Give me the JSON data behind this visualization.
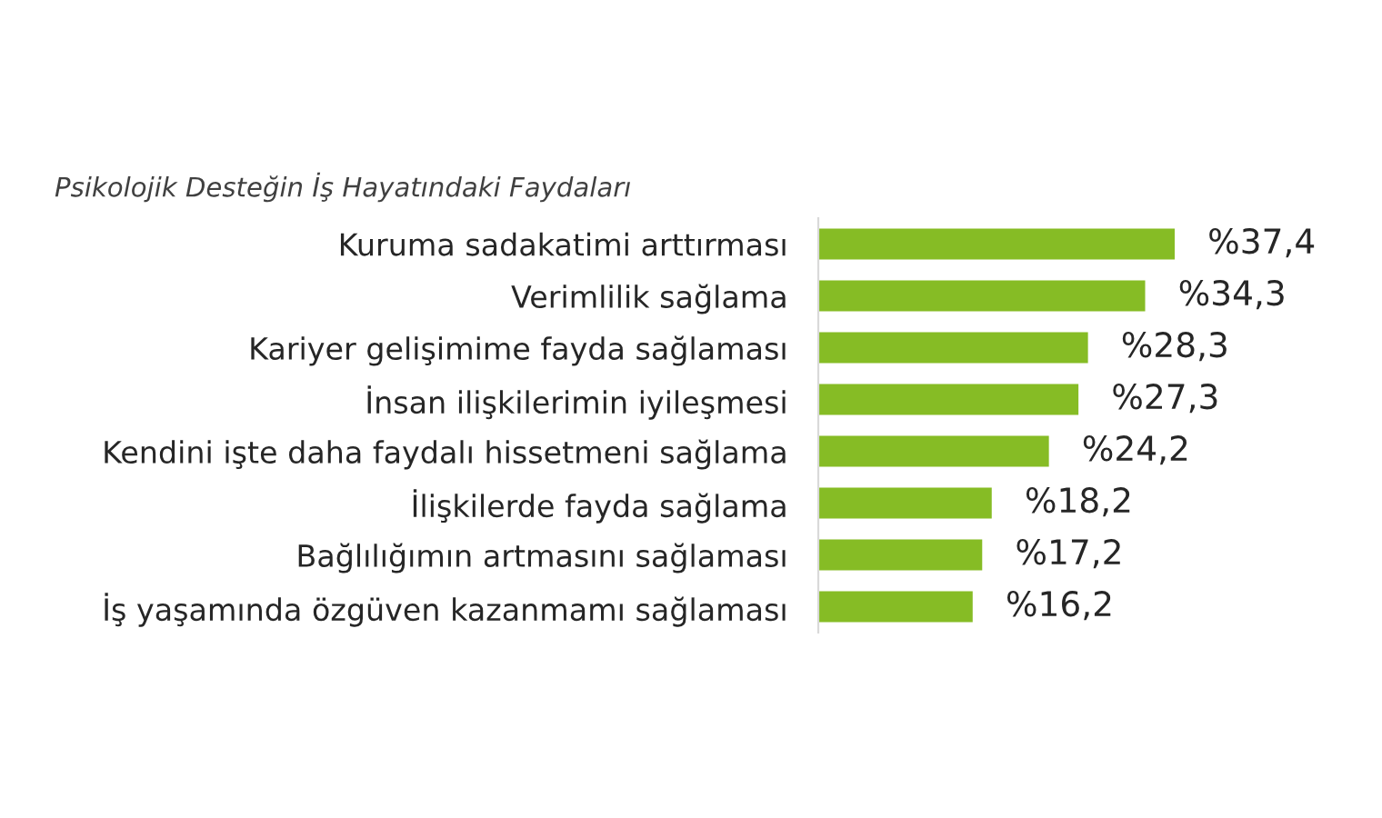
{
  "chart_data": {
    "type": "bar",
    "orientation": "horizontal",
    "title": "Psikolojik Desteğin İş Hayatındaki Faydaları",
    "categories": [
      "Kuruma sadakatimi arttırması",
      "Verimlilik sağlama",
      "Kariyer gelişimime fayda sağlaması",
      "İnsan ilişkilerimin iyileşmesi",
      "Kendini işte daha faydalı hissetmeni sağlama",
      "İlişkilerde fayda sağlama",
      "Bağlılığımın artmasını sağlaması",
      "İş yaşamında özgüven kazanmamı sağlaması"
    ],
    "values": [
      37.4,
      34.3,
      28.3,
      27.3,
      24.2,
      18.2,
      17.2,
      16.2
    ],
    "value_labels": [
      "%37,4",
      "%34,3",
      "%28,3",
      "%27,3",
      "%24,2",
      "%18,2",
      "%17,2",
      "%16,2"
    ],
    "color": "#86bc25",
    "tick_labels": "y"
  }
}
